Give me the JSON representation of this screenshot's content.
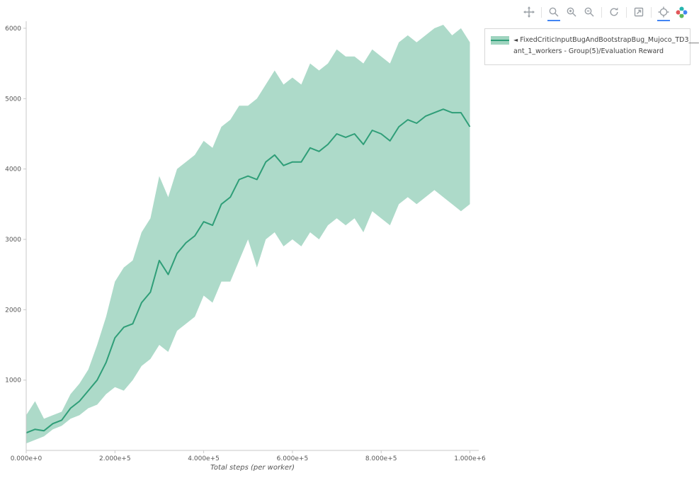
{
  "modebar": {
    "buttons": [
      {
        "name": "pan",
        "active": false
      },
      {
        "name": "zoom",
        "active": true
      },
      {
        "name": "zoom-in",
        "active": false
      },
      {
        "name": "zoom-out",
        "active": false
      },
      {
        "name": "autoscale",
        "active": false
      },
      {
        "name": "reset-axes",
        "active": false
      },
      {
        "name": "hover-closest",
        "active": true
      },
      {
        "name": "plotly-logo",
        "active": false
      }
    ]
  },
  "legend": {
    "marker": "◄",
    "line1": "FixedCriticInputBugAndBootstrapBug_Mujoco_TD3___",
    "line2": "ant_1_workers - Group(5)/Evaluation Reward"
  },
  "colors": {
    "line": "#2f9e78",
    "band": "#9fd4bf",
    "active_underline": "#4285f4",
    "axis_line": "#c8c8c8",
    "tick_text": "#565656"
  },
  "chart_data": {
    "type": "line",
    "title": "",
    "xlabel": "Total steps (per worker)",
    "ylabel": "",
    "xlim": [
      0,
      1020000
    ],
    "ylim": [
      0,
      6100
    ],
    "grid": false,
    "legend_position": "right-top",
    "x_ticks": [
      {
        "v": 0,
        "label": "0.000e+0"
      },
      {
        "v": 200000,
        "label": "2.000e+5"
      },
      {
        "v": 400000,
        "label": "4.000e+5"
      },
      {
        "v": 600000,
        "label": "6.000e+5"
      },
      {
        "v": 800000,
        "label": "8.000e+5"
      },
      {
        "v": 1000000,
        "label": "1.000e+6"
      }
    ],
    "y_ticks": [
      {
        "v": 1000,
        "label": "1000"
      },
      {
        "v": 2000,
        "label": "2000"
      },
      {
        "v": 3000,
        "label": "3000"
      },
      {
        "v": 4000,
        "label": "4000"
      },
      {
        "v": 5000,
        "label": "5000"
      },
      {
        "v": 6000,
        "label": "6000"
      }
    ],
    "series": [
      {
        "name": "FixedCriticInputBugAndBootstrapBug_Mujoco_TD3___ant_1_workers - Group(5)/Evaluation Reward",
        "x": [
          0,
          20000,
          40000,
          60000,
          80000,
          100000,
          120000,
          140000,
          160000,
          180000,
          200000,
          220000,
          240000,
          260000,
          280000,
          300000,
          320000,
          340000,
          360000,
          380000,
          400000,
          420000,
          440000,
          460000,
          480000,
          500000,
          520000,
          540000,
          560000,
          580000,
          600000,
          620000,
          640000,
          660000,
          680000,
          700000,
          720000,
          740000,
          760000,
          780000,
          800000,
          820000,
          840000,
          860000,
          880000,
          900000,
          920000,
          940000,
          960000,
          980000,
          1000000
        ],
        "mean": [
          250,
          300,
          280,
          380,
          430,
          600,
          700,
          850,
          1000,
          1250,
          1600,
          1750,
          1800,
          2100,
          2250,
          2700,
          2500,
          2800,
          2950,
          3050,
          3250,
          3200,
          3500,
          3600,
          3850,
          3900,
          3850,
          4100,
          4200,
          4050,
          4100,
          4100,
          4300,
          4250,
          4350,
          4500,
          4450,
          4500,
          4350,
          4550,
          4500,
          4400,
          4600,
          4700,
          4650,
          4750,
          4800,
          4850,
          4800,
          4800,
          4600
        ],
        "lower": [
          100,
          150,
          200,
          300,
          350,
          450,
          500,
          600,
          650,
          800,
          900,
          850,
          1000,
          1200,
          1300,
          1500,
          1400,
          1700,
          1800,
          1900,
          2200,
          2100,
          2400,
          2400,
          2700,
          3000,
          2600,
          3000,
          3100,
          2900,
          3000,
          2900,
          3100,
          3000,
          3200,
          3300,
          3200,
          3300,
          3100,
          3400,
          3300,
          3200,
          3500,
          3600,
          3500,
          3600,
          3700,
          3600,
          3500,
          3400,
          3500
        ],
        "upper": [
          500,
          700,
          450,
          500,
          550,
          800,
          950,
          1150,
          1500,
          1900,
          2400,
          2600,
          2700,
          3100,
          3300,
          3900,
          3600,
          4000,
          4100,
          4200,
          4400,
          4300,
          4600,
          4700,
          4900,
          4900,
          5000,
          5200,
          5400,
          5200,
          5300,
          5200,
          5500,
          5400,
          5500,
          5700,
          5600,
          5600,
          5500,
          5700,
          5600,
          5500,
          5800,
          5900,
          5800,
          5900,
          6000,
          6050,
          5900,
          6000,
          5800
        ]
      }
    ]
  }
}
